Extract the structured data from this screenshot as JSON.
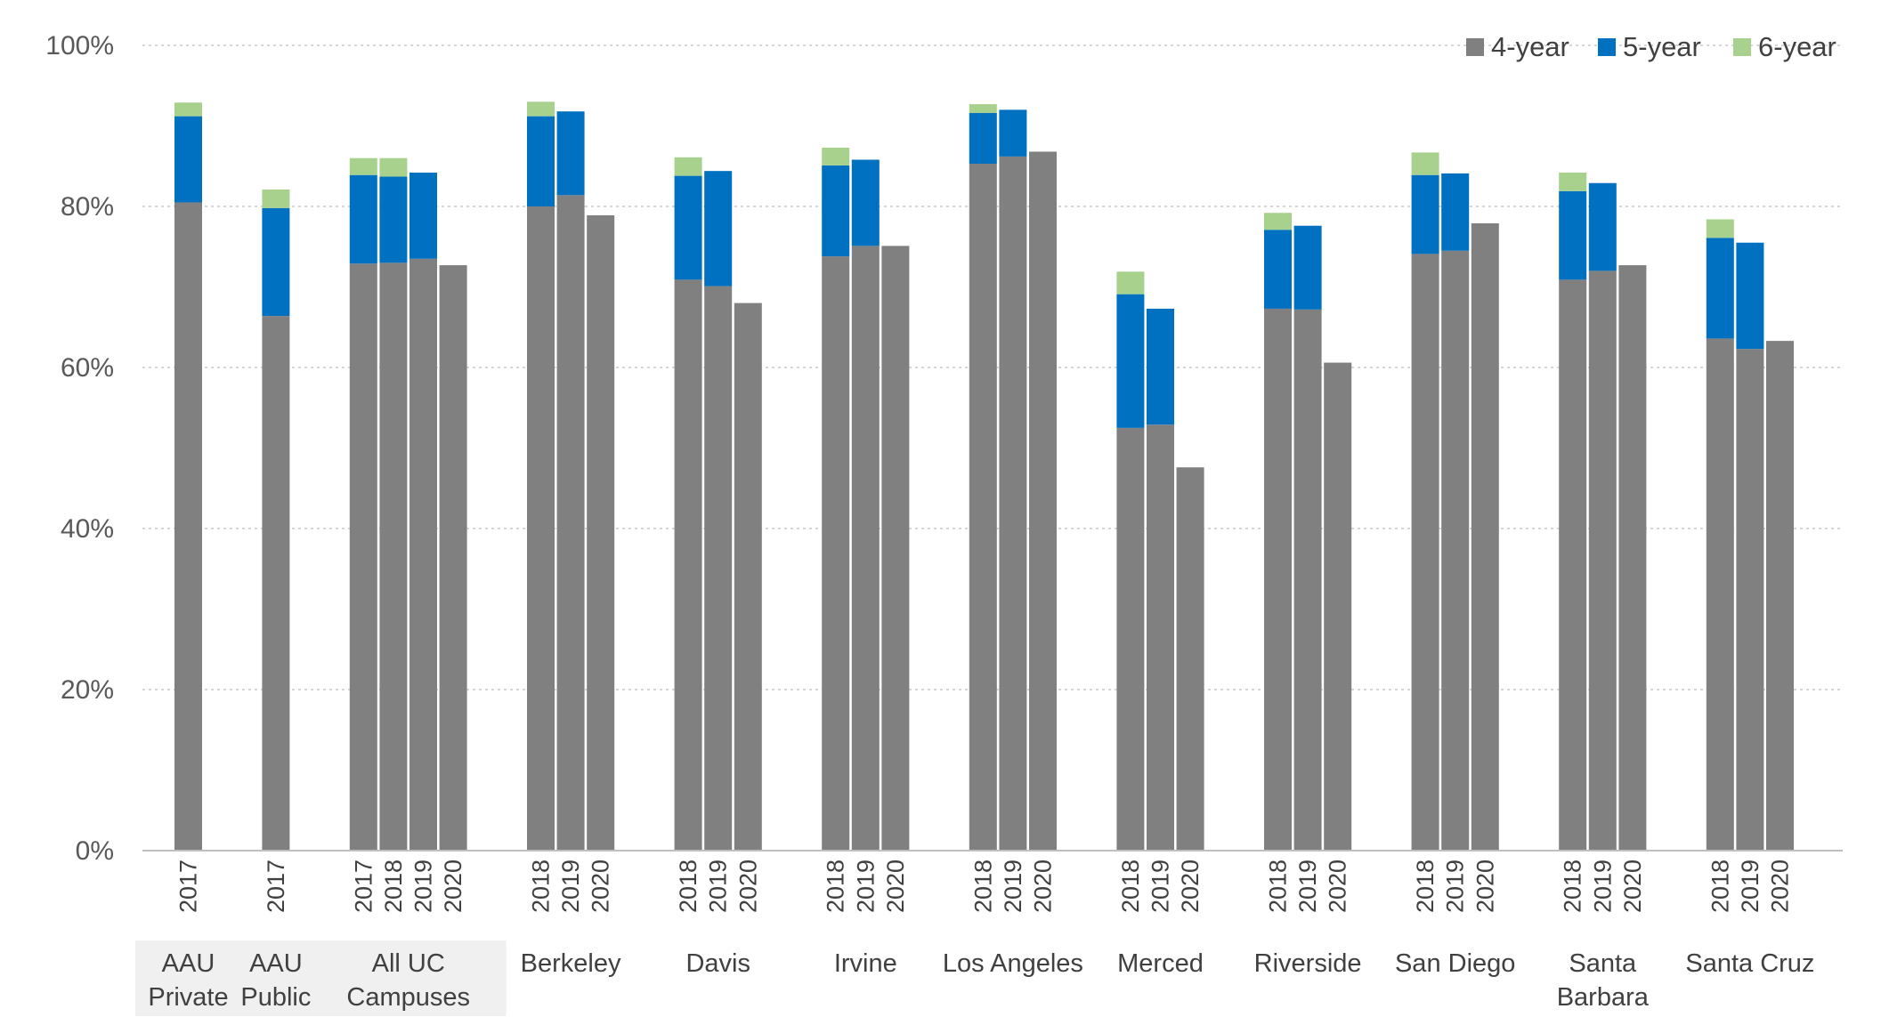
{
  "chart_data": {
    "type": "bar",
    "stacked": true,
    "ylim": [
      0,
      100
    ],
    "y_ticks": [
      "0%",
      "20%",
      "40%",
      "60%",
      "80%",
      "100%"
    ],
    "grid": true,
    "legend_position": "top-right",
    "series": [
      {
        "name": "4-year",
        "color": "#808080"
      },
      {
        "name": "5-year",
        "color": "#0070C0"
      },
      {
        "name": "6-year",
        "color": "#A9D18E"
      }
    ],
    "groups": [
      {
        "label_lines": [
          "AAU",
          "Private"
        ],
        "shaded": true,
        "bars": [
          {
            "year": "2017",
            "values": [
              80.5,
              10.7,
              1.7
            ]
          }
        ]
      },
      {
        "label_lines": [
          "AAU",
          "Public"
        ],
        "shaded": true,
        "bars": [
          {
            "year": "2017",
            "values": [
              66.4,
              13.4,
              2.3
            ]
          }
        ]
      },
      {
        "label_lines": [
          "All UC",
          "Campuses"
        ],
        "shaded": true,
        "bars": [
          {
            "year": "2017",
            "values": [
              72.9,
              11.0,
              2.1
            ]
          },
          {
            "year": "2018",
            "values": [
              73.0,
              10.7,
              2.3
            ]
          },
          {
            "year": "2019",
            "values": [
              73.5,
              10.7,
              0
            ]
          },
          {
            "year": "2020",
            "values": [
              72.7,
              0,
              0
            ]
          }
        ]
      },
      {
        "label_lines": [
          "Berkeley"
        ],
        "bars": [
          {
            "year": "2018",
            "values": [
              80.0,
              11.2,
              1.8
            ]
          },
          {
            "year": "2019",
            "values": [
              81.4,
              10.4,
              0
            ]
          },
          {
            "year": "2020",
            "values": [
              78.9,
              0,
              0
            ]
          }
        ]
      },
      {
        "label_lines": [
          "Davis"
        ],
        "bars": [
          {
            "year": "2018",
            "values": [
              70.9,
              12.9,
              2.3
            ]
          },
          {
            "year": "2019",
            "values": [
              70.1,
              14.3,
              0
            ]
          },
          {
            "year": "2020",
            "values": [
              68.0,
              0,
              0
            ]
          }
        ]
      },
      {
        "label_lines": [
          "Irvine"
        ],
        "bars": [
          {
            "year": "2018",
            "values": [
              73.8,
              11.3,
              2.2
            ]
          },
          {
            "year": "2019",
            "values": [
              75.1,
              10.7,
              0
            ]
          },
          {
            "year": "2020",
            "values": [
              75.1,
              0,
              0
            ]
          }
        ]
      },
      {
        "label_lines": [
          "Los Angeles"
        ],
        "bars": [
          {
            "year": "2018",
            "values": [
              85.3,
              6.3,
              1.1
            ]
          },
          {
            "year": "2019",
            "values": [
              86.2,
              5.8,
              0
            ]
          },
          {
            "year": "2020",
            "values": [
              86.8,
              0,
              0
            ]
          }
        ]
      },
      {
        "label_lines": [
          "Merced"
        ],
        "bars": [
          {
            "year": "2018",
            "values": [
              52.5,
              16.6,
              2.8
            ]
          },
          {
            "year": "2019",
            "values": [
              52.9,
              14.4,
              0
            ]
          },
          {
            "year": "2020",
            "values": [
              47.6,
              0,
              0
            ]
          }
        ]
      },
      {
        "label_lines": [
          "Riverside"
        ],
        "bars": [
          {
            "year": "2018",
            "values": [
              67.3,
              9.8,
              2.1
            ]
          },
          {
            "year": "2019",
            "values": [
              67.2,
              10.4,
              0
            ]
          },
          {
            "year": "2020",
            "values": [
              60.6,
              0,
              0
            ]
          }
        ]
      },
      {
        "label_lines": [
          "San Diego"
        ],
        "bars": [
          {
            "year": "2018",
            "values": [
              74.1,
              9.8,
              2.8
            ]
          },
          {
            "year": "2019",
            "values": [
              74.5,
              9.6,
              0
            ]
          },
          {
            "year": "2020",
            "values": [
              77.9,
              0,
              0
            ]
          }
        ]
      },
      {
        "label_lines": [
          "Santa",
          "Barbara"
        ],
        "bars": [
          {
            "year": "2018",
            "values": [
              70.9,
              11.0,
              2.3
            ]
          },
          {
            "year": "2019",
            "values": [
              72.0,
              10.9,
              0
            ]
          },
          {
            "year": "2020",
            "values": [
              72.7,
              0,
              0
            ]
          }
        ]
      },
      {
        "label_lines": [
          "Santa Cruz"
        ],
        "bars": [
          {
            "year": "2018",
            "values": [
              63.6,
              12.5,
              2.3
            ]
          },
          {
            "year": "2019",
            "values": [
              62.3,
              13.2,
              0
            ]
          },
          {
            "year": "2020",
            "values": [
              63.3,
              0,
              0
            ]
          }
        ]
      }
    ]
  }
}
